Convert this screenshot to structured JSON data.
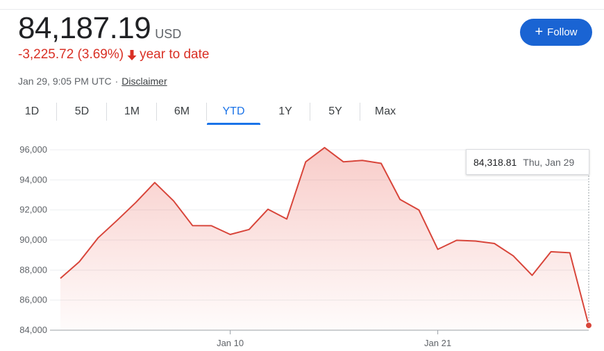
{
  "quote": {
    "price": "84,187.19",
    "currency": "USD",
    "change": "-3,225.72 (3.69%)",
    "change_direction": "down",
    "period": "year to date",
    "timestamp": "Jan 29, 9:05 PM UTC",
    "separator": "·",
    "disclaimer": "Disclaimer"
  },
  "follow_button": {
    "label": "Follow",
    "icon": "plus-icon"
  },
  "tabs": [
    {
      "label": "1D",
      "active": false
    },
    {
      "label": "5D",
      "active": false
    },
    {
      "label": "1M",
      "active": false
    },
    {
      "label": "6M",
      "active": false
    },
    {
      "label": "YTD",
      "active": true
    },
    {
      "label": "1Y",
      "active": false
    },
    {
      "label": "5Y",
      "active": false
    },
    {
      "label": "Max",
      "active": false
    }
  ],
  "tooltip": {
    "value": "84,318.81",
    "date": "Thu, Jan 29"
  },
  "colors": {
    "line": "#d8453a",
    "accent": "#1a73e8",
    "follow_bg": "#1a64d3",
    "negative": "#d93025"
  },
  "chart_data": {
    "type": "area",
    "x": [
      "2026-01-01",
      "2026-01-02",
      "2026-01-03",
      "2026-01-04",
      "2026-01-05",
      "2026-01-06",
      "2026-01-07",
      "2026-01-08",
      "2026-01-09",
      "2026-01-10",
      "2026-01-11",
      "2026-01-12",
      "2026-01-13",
      "2026-01-14",
      "2026-01-15",
      "2026-01-16",
      "2026-01-17",
      "2026-01-18",
      "2026-01-19",
      "2026-01-20",
      "2026-01-21",
      "2026-01-22",
      "2026-01-23",
      "2026-01-24",
      "2026-01-25",
      "2026-01-26",
      "2026-01-27",
      "2026-01-28",
      "2026-01-29"
    ],
    "series": [
      {
        "values": [
          87450,
          88550,
          90150,
          91300,
          92500,
          93820,
          92600,
          90960,
          90950,
          90370,
          90700,
          92050,
          91400,
          95200,
          96150,
          95200,
          95300,
          95100,
          92700,
          92000,
          89380,
          89980,
          89930,
          89770,
          88950,
          87650,
          89220,
          89150,
          84318.81
        ]
      }
    ],
    "y_ticks": [
      "84,000",
      "86,000",
      "88,000",
      "90,000",
      "92,000",
      "94,000",
      "96,000"
    ],
    "x_ticks": [
      {
        "label": "Jan 10",
        "x": "2026-01-10"
      },
      {
        "label": "Jan 21",
        "x": "2026-01-21"
      }
    ],
    "ylim": [
      84000,
      96000
    ],
    "grid": true,
    "legend": "none",
    "highlight": {
      "x": "2026-01-29",
      "value": 84318.81
    }
  }
}
